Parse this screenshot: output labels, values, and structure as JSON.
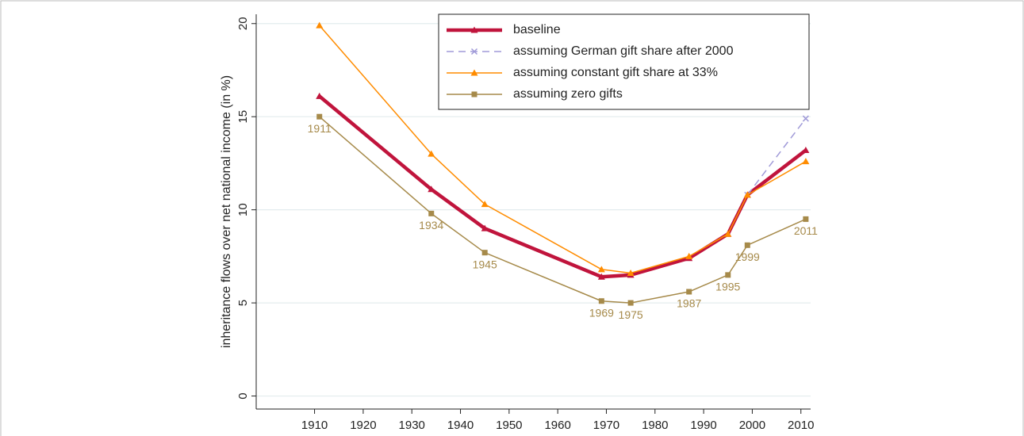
{
  "chart_data": {
    "type": "line",
    "y_label": "inheritance flows over net national income (in %)",
    "x": [
      1911,
      1934,
      1945,
      1969,
      1975,
      1987,
      1995,
      1999,
      2011
    ],
    "series": [
      {
        "name": "baseline",
        "color": "#c0143c",
        "marker": "triangle",
        "line_style": "solid",
        "line_width": 4.5,
        "values": [
          16.1,
          11.1,
          9.0,
          6.4,
          6.5,
          7.4,
          8.7,
          10.8,
          13.2
        ]
      },
      {
        "name": "assuming German gift share after 2000",
        "color": "#a09ad8",
        "marker": "cross",
        "line_style": "dashed",
        "line_width": 1.5,
        "values": [
          null,
          null,
          null,
          null,
          null,
          null,
          null,
          10.8,
          14.9
        ]
      },
      {
        "name": "assuming constant gift share at 33%",
        "color": "#ff8c00",
        "marker": "triangle",
        "line_style": "solid",
        "line_width": 1.5,
        "values": [
          19.9,
          13.0,
          10.3,
          6.8,
          6.6,
          7.5,
          8.7,
          10.8,
          12.6
        ]
      },
      {
        "name": "assuming zero gifts",
        "color": "#a68a4a",
        "marker": "square",
        "line_style": "solid",
        "line_width": 1.5,
        "point_labels": true,
        "values": [
          15.0,
          9.8,
          7.7,
          5.1,
          5.0,
          5.6,
          6.5,
          8.1,
          9.5
        ]
      }
    ],
    "xlim": [
      1898,
      2012
    ],
    "xticks": [
      1910,
      1920,
      1930,
      1940,
      1950,
      1960,
      1970,
      1980,
      1990,
      2000,
      2010
    ],
    "ylim": [
      -0.7,
      20.5
    ],
    "yticks": [
      0,
      5,
      10,
      15,
      20
    ],
    "grid": true,
    "legend": "upper right"
  }
}
